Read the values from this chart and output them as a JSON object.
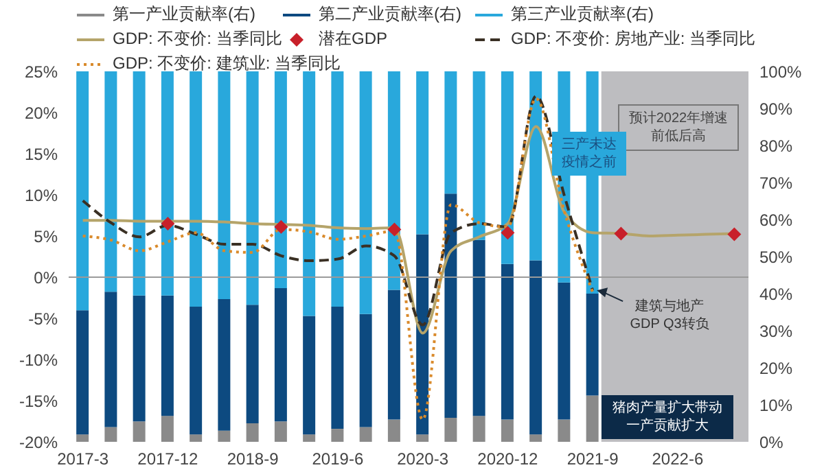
{
  "chart_data": {
    "type": "bar",
    "stacked": true,
    "legend": "top",
    "categories": [
      "2017-3",
      null,
      null,
      "2017-12",
      null,
      null,
      "2018-9",
      null,
      null,
      "2019-6",
      null,
      null,
      "2020-3",
      null,
      null,
      "2020-12",
      null,
      null,
      "2021-9",
      null,
      null,
      "2022-6",
      null,
      null
    ],
    "series": [
      {
        "name": "第一产业贡献率(右)",
        "axis": "y2",
        "color": "#8a8a8a",
        "values": [
          2,
          4,
          5.5,
          7,
          2,
          3,
          5,
          5.5,
          2,
          3.5,
          4,
          6,
          2,
          6.5,
          7,
          6,
          2,
          6,
          12.5,
          null,
          null,
          null,
          null,
          null
        ]
      },
      {
        "name": "第二产业贡献率(右)",
        "axis": "y2",
        "color": "#0d4a80",
        "values": [
          33.5,
          36.5,
          34,
          32.5,
          34.5,
          35.5,
          32,
          36,
          32,
          33,
          30.5,
          35,
          54,
          60.5,
          47.5,
          42,
          47,
          37,
          27.5,
          null,
          null,
          null,
          null,
          null
        ]
      },
      {
        "name": "第三产业贡献率(右)",
        "axis": "y2",
        "color": "#29a8dc",
        "values": [
          64.5,
          59.5,
          60.5,
          60.5,
          63.5,
          61.5,
          63,
          58.5,
          66,
          63.5,
          65.5,
          59,
          44,
          33,
          45.5,
          52,
          51,
          57,
          60,
          null,
          null,
          null,
          null,
          null
        ]
      },
      {
        "name": "GDP: 不变价: 当季同比",
        "type": "line",
        "axis": "y",
        "color": "#b5a46a",
        "line_style": "solid",
        "marker": "none",
        "values": [
          6.9,
          6.9,
          6.8,
          6.8,
          6.8,
          6.7,
          6.5,
          6.4,
          6.3,
          6.0,
          5.9,
          6.0,
          -6.8,
          3.2,
          4.9,
          6.5,
          18.3,
          7.9,
          5.4,
          5.3,
          5.0,
          5.1,
          5.2,
          5.3
        ]
      },
      {
        "name": "潜在GDP",
        "type": "scatter",
        "axis": "y",
        "color": "#c8202a",
        "marker": "diamond",
        "values": [
          null,
          null,
          null,
          6.5,
          null,
          null,
          null,
          6.1,
          null,
          null,
          null,
          5.8,
          null,
          null,
          null,
          5.4,
          null,
          null,
          null,
          5.3,
          null,
          null,
          null,
          5.2
        ]
      },
      {
        "name": "GDP: 不变价: 房地产业: 当季同比",
        "type": "line",
        "axis": "y",
        "color": "#3a3024",
        "line_style": "dashed",
        "marker": "none",
        "values": [
          9.3,
          6.6,
          4.9,
          6.3,
          5.2,
          4.0,
          4.0,
          2.6,
          2.0,
          2.2,
          3.8,
          2.6,
          -5.8,
          5.4,
          6.5,
          6.1,
          22.0,
          9.9,
          -1.6,
          null,
          null,
          null,
          null,
          null
        ]
      },
      {
        "name": "GDP: 不变价: 建筑业: 当季同比",
        "type": "line",
        "axis": "y",
        "color": "#d98a2b",
        "line_style": "dotted",
        "marker": "none",
        "values": [
          5.0,
          4.5,
          3.2,
          4.3,
          5.4,
          3.2,
          3.0,
          5.8,
          5.5,
          4.6,
          5.0,
          5.6,
          -17.3,
          8.8,
          6.6,
          6.1,
          21.7,
          8.0,
          -1.8,
          null,
          null,
          null,
          null,
          null
        ]
      }
    ],
    "ylim": [
      -20,
      25
    ],
    "yticks": [
      {
        "value": -20,
        "label": "-20%"
      },
      {
        "value": -15,
        "label": "-15%"
      },
      {
        "value": -10,
        "label": "-10%"
      },
      {
        "value": -5,
        "label": "-5%"
      },
      {
        "value": 0,
        "label": "0%"
      },
      {
        "value": 5,
        "label": "5%"
      },
      {
        "value": 10,
        "label": "10%"
      },
      {
        "value": 15,
        "label": "15%"
      },
      {
        "value": 20,
        "label": "20%"
      },
      {
        "value": 25,
        "label": "25%"
      }
    ],
    "y2lim": [
      0,
      100
    ],
    "y2ticks": [
      {
        "value": 0,
        "label": "0%"
      },
      {
        "value": 10,
        "label": "10%"
      },
      {
        "value": 20,
        "label": "20%"
      },
      {
        "value": 30,
        "label": "30%"
      },
      {
        "value": 40,
        "label": "40%"
      },
      {
        "value": 50,
        "label": "50%"
      },
      {
        "value": 60,
        "label": "60%"
      },
      {
        "value": 70,
        "label": "70%"
      },
      {
        "value": 80,
        "label": "80%"
      },
      {
        "value": 90,
        "label": "90%"
      },
      {
        "value": 100,
        "label": "100%"
      }
    ],
    "ref_lines": [
      {
        "axis": "y",
        "value": 0,
        "color": "#9a9a9a"
      }
    ],
    "annotations": [
      "预计2022年增速前低后高",
      "三产未达疫情之前",
      {
        "text": "建筑与地产GDP Q3转负",
        "x": "2021-9",
        "y": -1.6
      },
      "猪肉产量扩大带动一产贡献扩大"
    ]
  }
}
